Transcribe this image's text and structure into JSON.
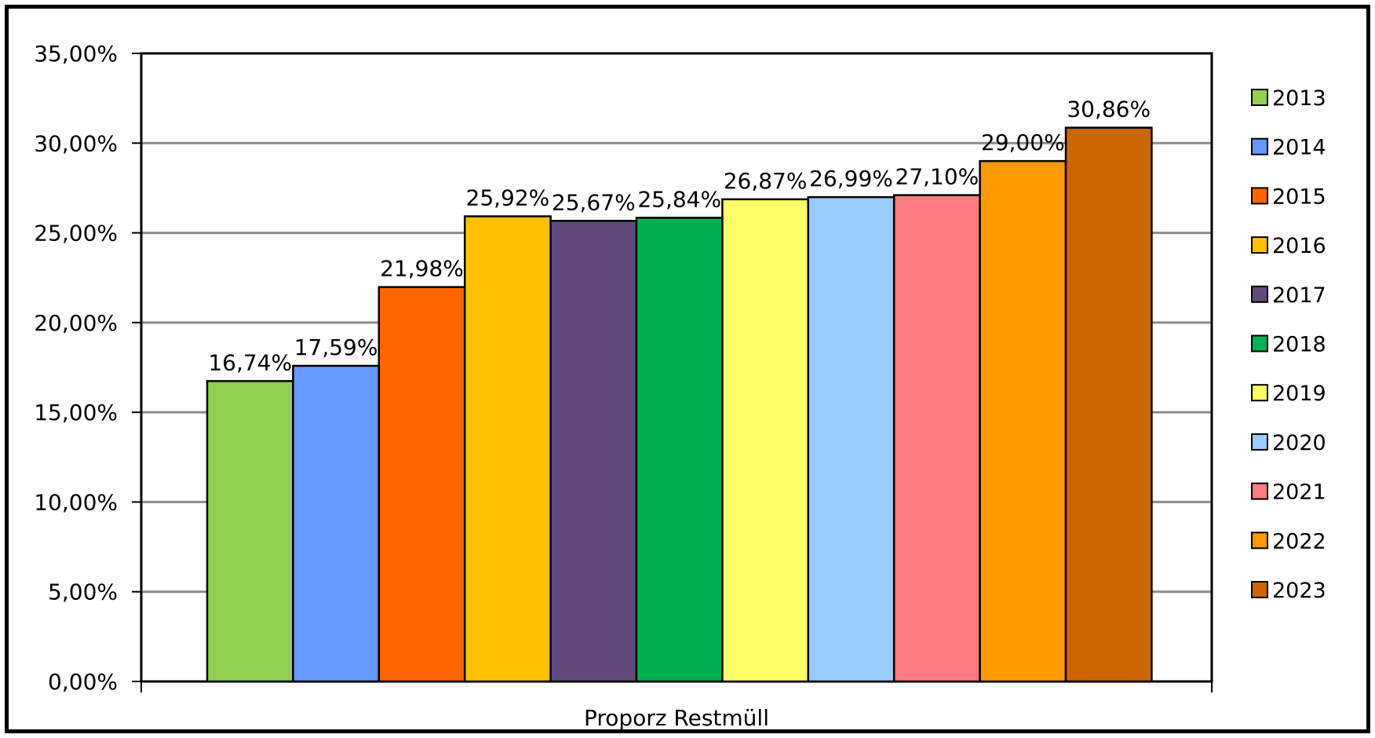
{
  "chart_data": {
    "type": "bar",
    "categories": [
      "Proporz Restmüll"
    ],
    "xlabel": "",
    "ylabel": "",
    "ylim": [
      0,
      35
    ],
    "y_ticks": [
      "0,00%",
      "5,00%",
      "10,00%",
      "15,00%",
      "20,00%",
      "25,00%",
      "30,00%",
      "35,00%"
    ],
    "grid": true,
    "legend_position": "right",
    "series": [
      {
        "name": "2013",
        "values": [
          16.74
        ],
        "label": "16,74%",
        "color": "#92d050"
      },
      {
        "name": "2014",
        "values": [
          17.59
        ],
        "label": "17,59%",
        "color": "#6699ff"
      },
      {
        "name": "2015",
        "values": [
          21.98
        ],
        "label": "21,98%",
        "color": "#ff6600"
      },
      {
        "name": "2016",
        "values": [
          25.92
        ],
        "label": "25,92%",
        "color": "#ffc000"
      },
      {
        "name": "2017",
        "values": [
          25.67
        ],
        "label": "25,67%",
        "color": "#604a7b"
      },
      {
        "name": "2018",
        "values": [
          25.84
        ],
        "label": "25,84%",
        "color": "#00b050"
      },
      {
        "name": "2019",
        "values": [
          26.87
        ],
        "label": "26,87%",
        "color": "#ffff66"
      },
      {
        "name": "2020",
        "values": [
          26.99
        ],
        "label": "26,99%",
        "color": "#99ccff"
      },
      {
        "name": "2021",
        "values": [
          27.1
        ],
        "label": "27,10%",
        "color": "#ff7c80"
      },
      {
        "name": "2022",
        "values": [
          29.0
        ],
        "label": "29,00%",
        "color": "#ff9900"
      },
      {
        "name": "2023",
        "values": [
          30.86
        ],
        "label": "30,86%",
        "color": "#cc6600"
      }
    ]
  }
}
